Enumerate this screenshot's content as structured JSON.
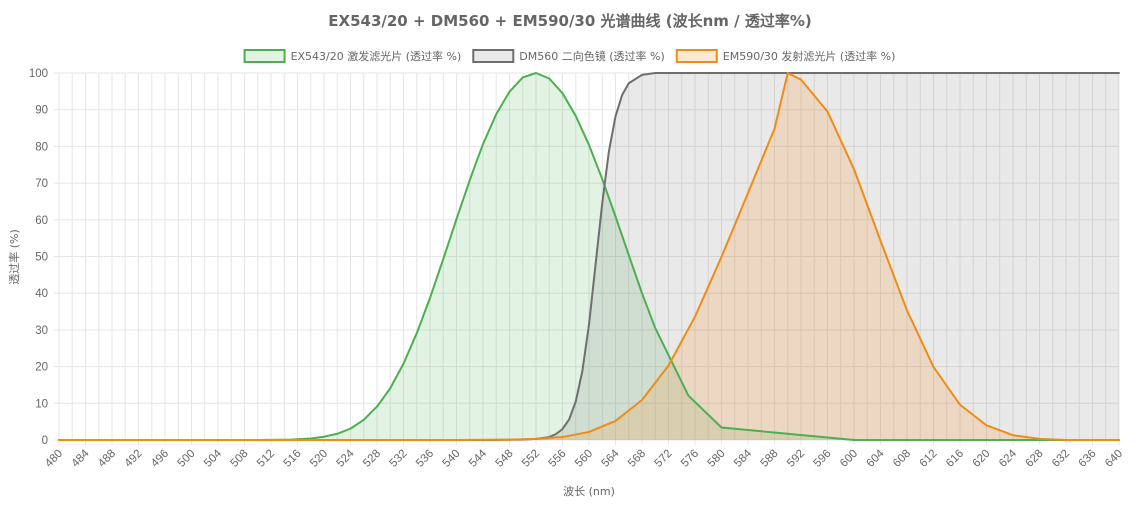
{
  "chart_data": {
    "type": "area",
    "title": "EX543/20 + DM560 + EM590/30 光谱曲线 (波长nm / 透过率%)",
    "xlabel": "波长 (nm)",
    "ylabel": "透过率 (%)",
    "xlim": [
      480,
      640
    ],
    "ylim": [
      0,
      100
    ],
    "x_ticks": [
      480,
      484,
      488,
      492,
      496,
      500,
      504,
      508,
      512,
      516,
      520,
      524,
      528,
      532,
      536,
      540,
      544,
      548,
      552,
      556,
      560,
      564,
      568,
      572,
      576,
      580,
      584,
      588,
      592,
      596,
      600,
      604,
      608,
      612,
      616,
      620,
      624,
      628,
      632,
      636,
      640
    ],
    "y_ticks": [
      0,
      10,
      20,
      30,
      40,
      50,
      60,
      70,
      80,
      90,
      100
    ],
    "grid": true,
    "legend_position": "top-center",
    "series": [
      {
        "name": "EX543/20 激发滤光片 (透过率 %)",
        "color": "#4caf50",
        "fill": "rgba(76,175,80,0.16)",
        "x": [
          480,
          500,
          510,
          515,
          518,
          520,
          522,
          524,
          526,
          528,
          530,
          532,
          534,
          536,
          538,
          540,
          542,
          543,
          544,
          546,
          548,
          550,
          552,
          554,
          556,
          558,
          560,
          562,
          564,
          566,
          568,
          570,
          575,
          580,
          600,
          640
        ],
        "y": [
          0,
          0,
          0,
          0.1,
          0.4,
          0.9,
          1.7,
          3.1,
          5.5,
          9.1,
          14.1,
          20.8,
          29.1,
          38.7,
          49.3,
          60.2,
          70.8,
          75.8,
          80.6,
          88.8,
          94.9,
          98.8,
          100,
          98.5,
          94.5,
          88.3,
          80.4,
          71.1,
          60.9,
          50.4,
          40,
          30.5,
          12.1,
          3.4,
          0,
          0
        ]
      },
      {
        "name": "DM560 二向色镜 (透过率 %)",
        "color": "#6e6e6e",
        "fill": "rgba(110,110,110,0.15)",
        "x": [
          480,
          545,
          550,
          552,
          554,
          555,
          556,
          557,
          558,
          559,
          560,
          561,
          562,
          563,
          564,
          565,
          566,
          568,
          570,
          640
        ],
        "y": [
          0,
          0,
          0.1,
          0.3,
          0.8,
          1.6,
          3,
          5.6,
          10.5,
          18.8,
          31.5,
          48,
          64.5,
          78.6,
          88.2,
          94,
          97.2,
          99.5,
          100,
          100
        ]
      },
      {
        "name": "EM590/30 发射滤光片 (透过率 %)",
        "color": "#ef8c16",
        "fill": "rgba(244,150,60,0.22)",
        "x": [
          480,
          540,
          548,
          552,
          556,
          560,
          564,
          568,
          572,
          576,
          580,
          584,
          588,
          590,
          592,
          596,
          600,
          604,
          608,
          612,
          616,
          620,
          624,
          628,
          632,
          640
        ],
        "y": [
          0,
          0,
          0.1,
          0.3,
          0.8,
          2.2,
          5.2,
          10.9,
          20.3,
          33.6,
          49.9,
          67.3,
          84.8,
          100,
          98.2,
          89.5,
          73.8,
          54.3,
          35.3,
          19.9,
          9.6,
          4,
          1.3,
          0.3,
          0,
          0
        ]
      }
    ]
  }
}
